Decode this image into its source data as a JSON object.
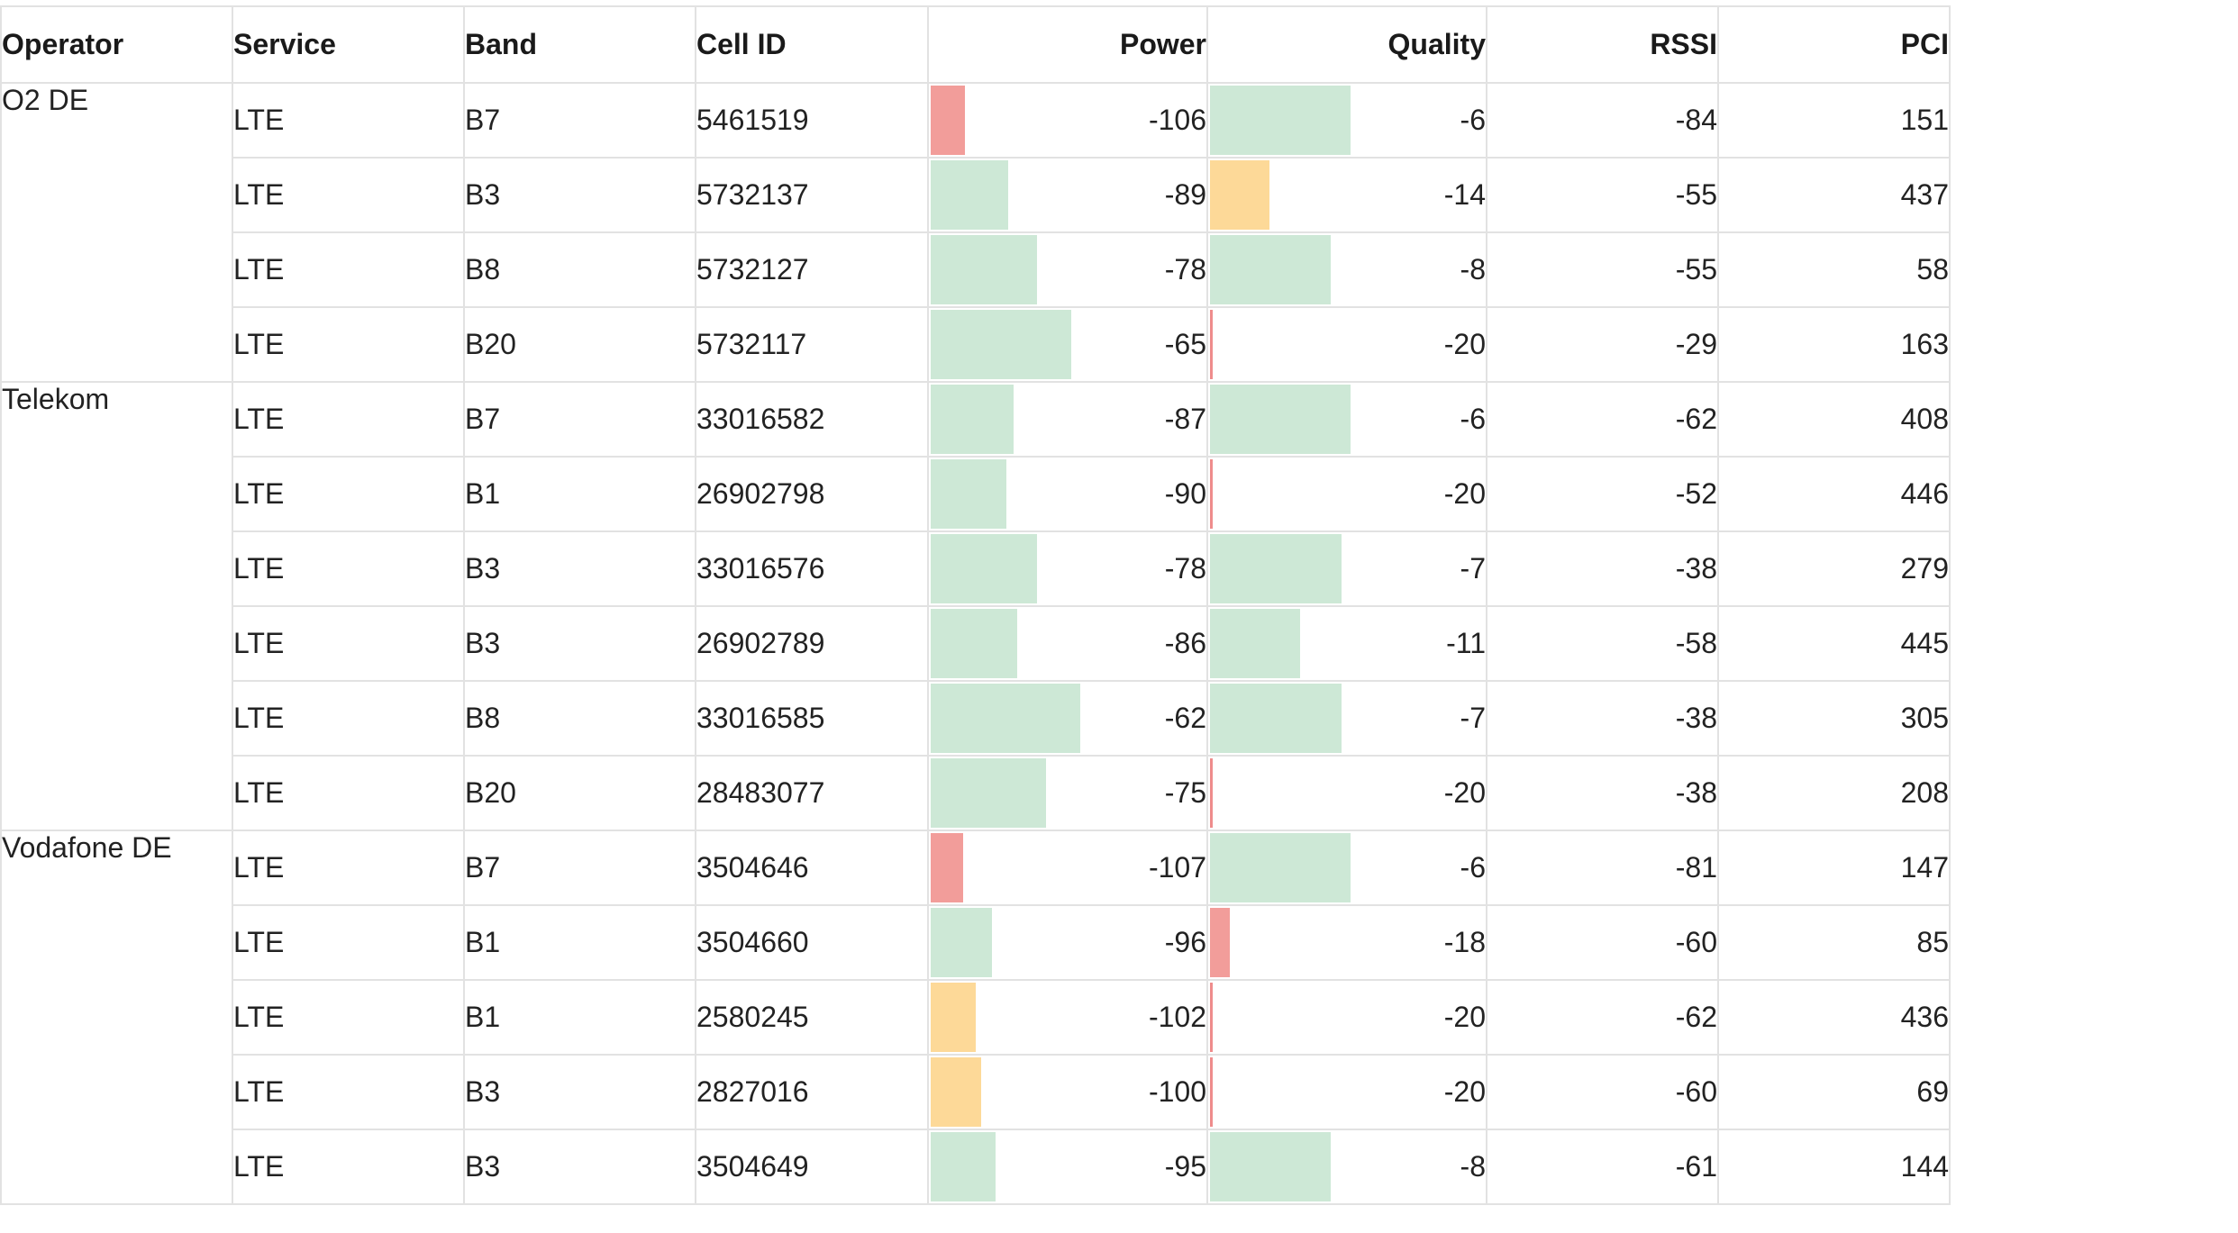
{
  "headers": {
    "operator": "Operator",
    "service": "Service",
    "band": "Band",
    "cell_id": "Cell ID",
    "power": "Power",
    "quality": "Quality",
    "rssi": "RSSI",
    "pci": "PCI"
  },
  "colors": {
    "bar_good": "#cde8d6",
    "bar_bad": "#f29d9a",
    "bar_medium": "#fdd998",
    "grid_line": "#e2e2e2"
  },
  "groups": [
    {
      "operator": "O2 DE",
      "rows": [
        {
          "service": "LTE",
          "band": "B7",
          "cell_id": "5461519",
          "power": "-106",
          "power_fill": 0.19,
          "power_level": "bad",
          "quality": "-6",
          "quality_fill": 0.78,
          "quality_level": "good",
          "rssi": "-84",
          "pci": "151"
        },
        {
          "service": "LTE",
          "band": "B3",
          "cell_id": "5732137",
          "power": "-89",
          "power_fill": 0.43,
          "power_level": "good",
          "quality": "-14",
          "quality_fill": 0.33,
          "quality_level": "medium",
          "rssi": "-55",
          "pci": "437"
        },
        {
          "service": "LTE",
          "band": "B8",
          "cell_id": "5732127",
          "power": "-78",
          "power_fill": 0.59,
          "power_level": "good",
          "quality": "-8",
          "quality_fill": 0.67,
          "quality_level": "good",
          "rssi": "-55",
          "pci": "58"
        },
        {
          "service": "LTE",
          "band": "B20",
          "cell_id": "5732117",
          "power": "-65",
          "power_fill": 0.78,
          "power_level": "good",
          "quality": "-20",
          "quality_fill": 0.0,
          "quality_level": "bad",
          "rssi": "-29",
          "pci": "163"
        }
      ]
    },
    {
      "operator": "Telekom",
      "rows": [
        {
          "service": "LTE",
          "band": "B7",
          "cell_id": "33016582",
          "power": "-87",
          "power_fill": 0.46,
          "power_level": "good",
          "quality": "-6",
          "quality_fill": 0.78,
          "quality_level": "good",
          "rssi": "-62",
          "pci": "408"
        },
        {
          "service": "LTE",
          "band": "B1",
          "cell_id": "26902798",
          "power": "-90",
          "power_fill": 0.42,
          "power_level": "good",
          "quality": "-20",
          "quality_fill": 0.0,
          "quality_level": "bad",
          "rssi": "-52",
          "pci": "446"
        },
        {
          "service": "LTE",
          "band": "B3",
          "cell_id": "33016576",
          "power": "-78",
          "power_fill": 0.59,
          "power_level": "good",
          "quality": "-7",
          "quality_fill": 0.73,
          "quality_level": "good",
          "rssi": "-38",
          "pci": "279"
        },
        {
          "service": "LTE",
          "band": "B3",
          "cell_id": "26902789",
          "power": "-86",
          "power_fill": 0.48,
          "power_level": "good",
          "quality": "-11",
          "quality_fill": 0.5,
          "quality_level": "good",
          "rssi": "-58",
          "pci": "445"
        },
        {
          "service": "LTE",
          "band": "B8",
          "cell_id": "33016585",
          "power": "-62",
          "power_fill": 0.83,
          "power_level": "good",
          "quality": "-7",
          "quality_fill": 0.73,
          "quality_level": "good",
          "rssi": "-38",
          "pci": "305"
        },
        {
          "service": "LTE",
          "band": "B20",
          "cell_id": "28483077",
          "power": "-75",
          "power_fill": 0.64,
          "power_level": "good",
          "quality": "-20",
          "quality_fill": 0.0,
          "quality_level": "bad",
          "rssi": "-38",
          "pci": "208"
        }
      ]
    },
    {
      "operator": "Vodafone DE",
      "rows": [
        {
          "service": "LTE",
          "band": "B7",
          "cell_id": "3504646",
          "power": "-107",
          "power_fill": 0.18,
          "power_level": "bad",
          "quality": "-6",
          "quality_fill": 0.78,
          "quality_level": "good",
          "rssi": "-81",
          "pci": "147"
        },
        {
          "service": "LTE",
          "band": "B1",
          "cell_id": "3504660",
          "power": "-96",
          "power_fill": 0.34,
          "power_level": "good",
          "quality": "-18",
          "quality_fill": 0.11,
          "quality_level": "bad",
          "rssi": "-60",
          "pci": "85"
        },
        {
          "service": "LTE",
          "band": "B1",
          "cell_id": "2580245",
          "power": "-102",
          "power_fill": 0.25,
          "power_level": "medium",
          "quality": "-20",
          "quality_fill": 0.0,
          "quality_level": "bad",
          "rssi": "-62",
          "pci": "436"
        },
        {
          "service": "LTE",
          "band": "B3",
          "cell_id": "2827016",
          "power": "-100",
          "power_fill": 0.28,
          "power_level": "medium",
          "quality": "-20",
          "quality_fill": 0.0,
          "quality_level": "bad",
          "rssi": "-60",
          "pci": "69"
        },
        {
          "service": "LTE",
          "band": "B3",
          "cell_id": "3504649",
          "power": "-95",
          "power_fill": 0.36,
          "power_level": "good",
          "quality": "-8",
          "quality_fill": 0.67,
          "quality_level": "good",
          "rssi": "-61",
          "pci": "144"
        }
      ]
    }
  ]
}
